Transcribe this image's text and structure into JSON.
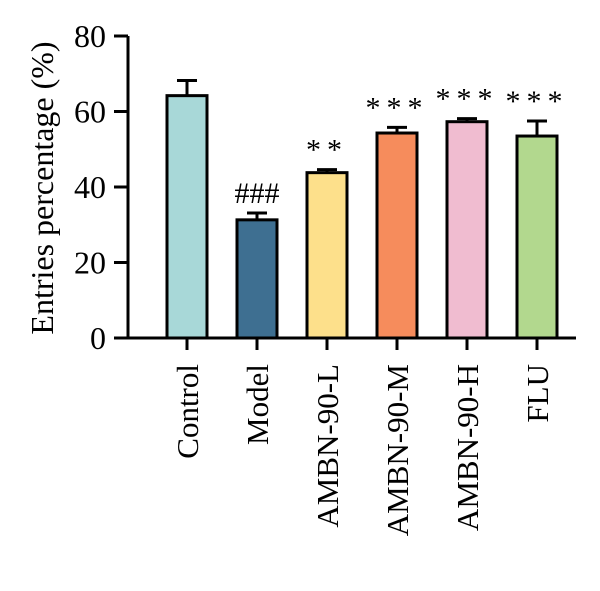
{
  "chart_data": {
    "type": "bar",
    "title": "",
    "xlabel": "",
    "ylabel": "Entries percentage (%)",
    "ylim": [
      0,
      80
    ],
    "yticks": [
      0,
      20,
      40,
      60,
      80
    ],
    "grid": false,
    "categories": [
      "Control",
      "Model",
      "AMBN-90-L",
      "AMBN-90-M",
      "AMBN-90-H",
      "FLU"
    ],
    "values": [
      64.2,
      31.3,
      43.8,
      54.3,
      57.3,
      53.5
    ],
    "errors": [
      4.0,
      1.8,
      0.8,
      1.5,
      0.8,
      4.0
    ],
    "colors": [
      "#a8d8d8",
      "#3e6f91",
      "#fde08b",
      "#f68c5c",
      "#f0bcd0",
      "#b2d88e"
    ],
    "annotations": [
      "",
      "###",
      "**",
      "***",
      "***",
      "***"
    ]
  }
}
